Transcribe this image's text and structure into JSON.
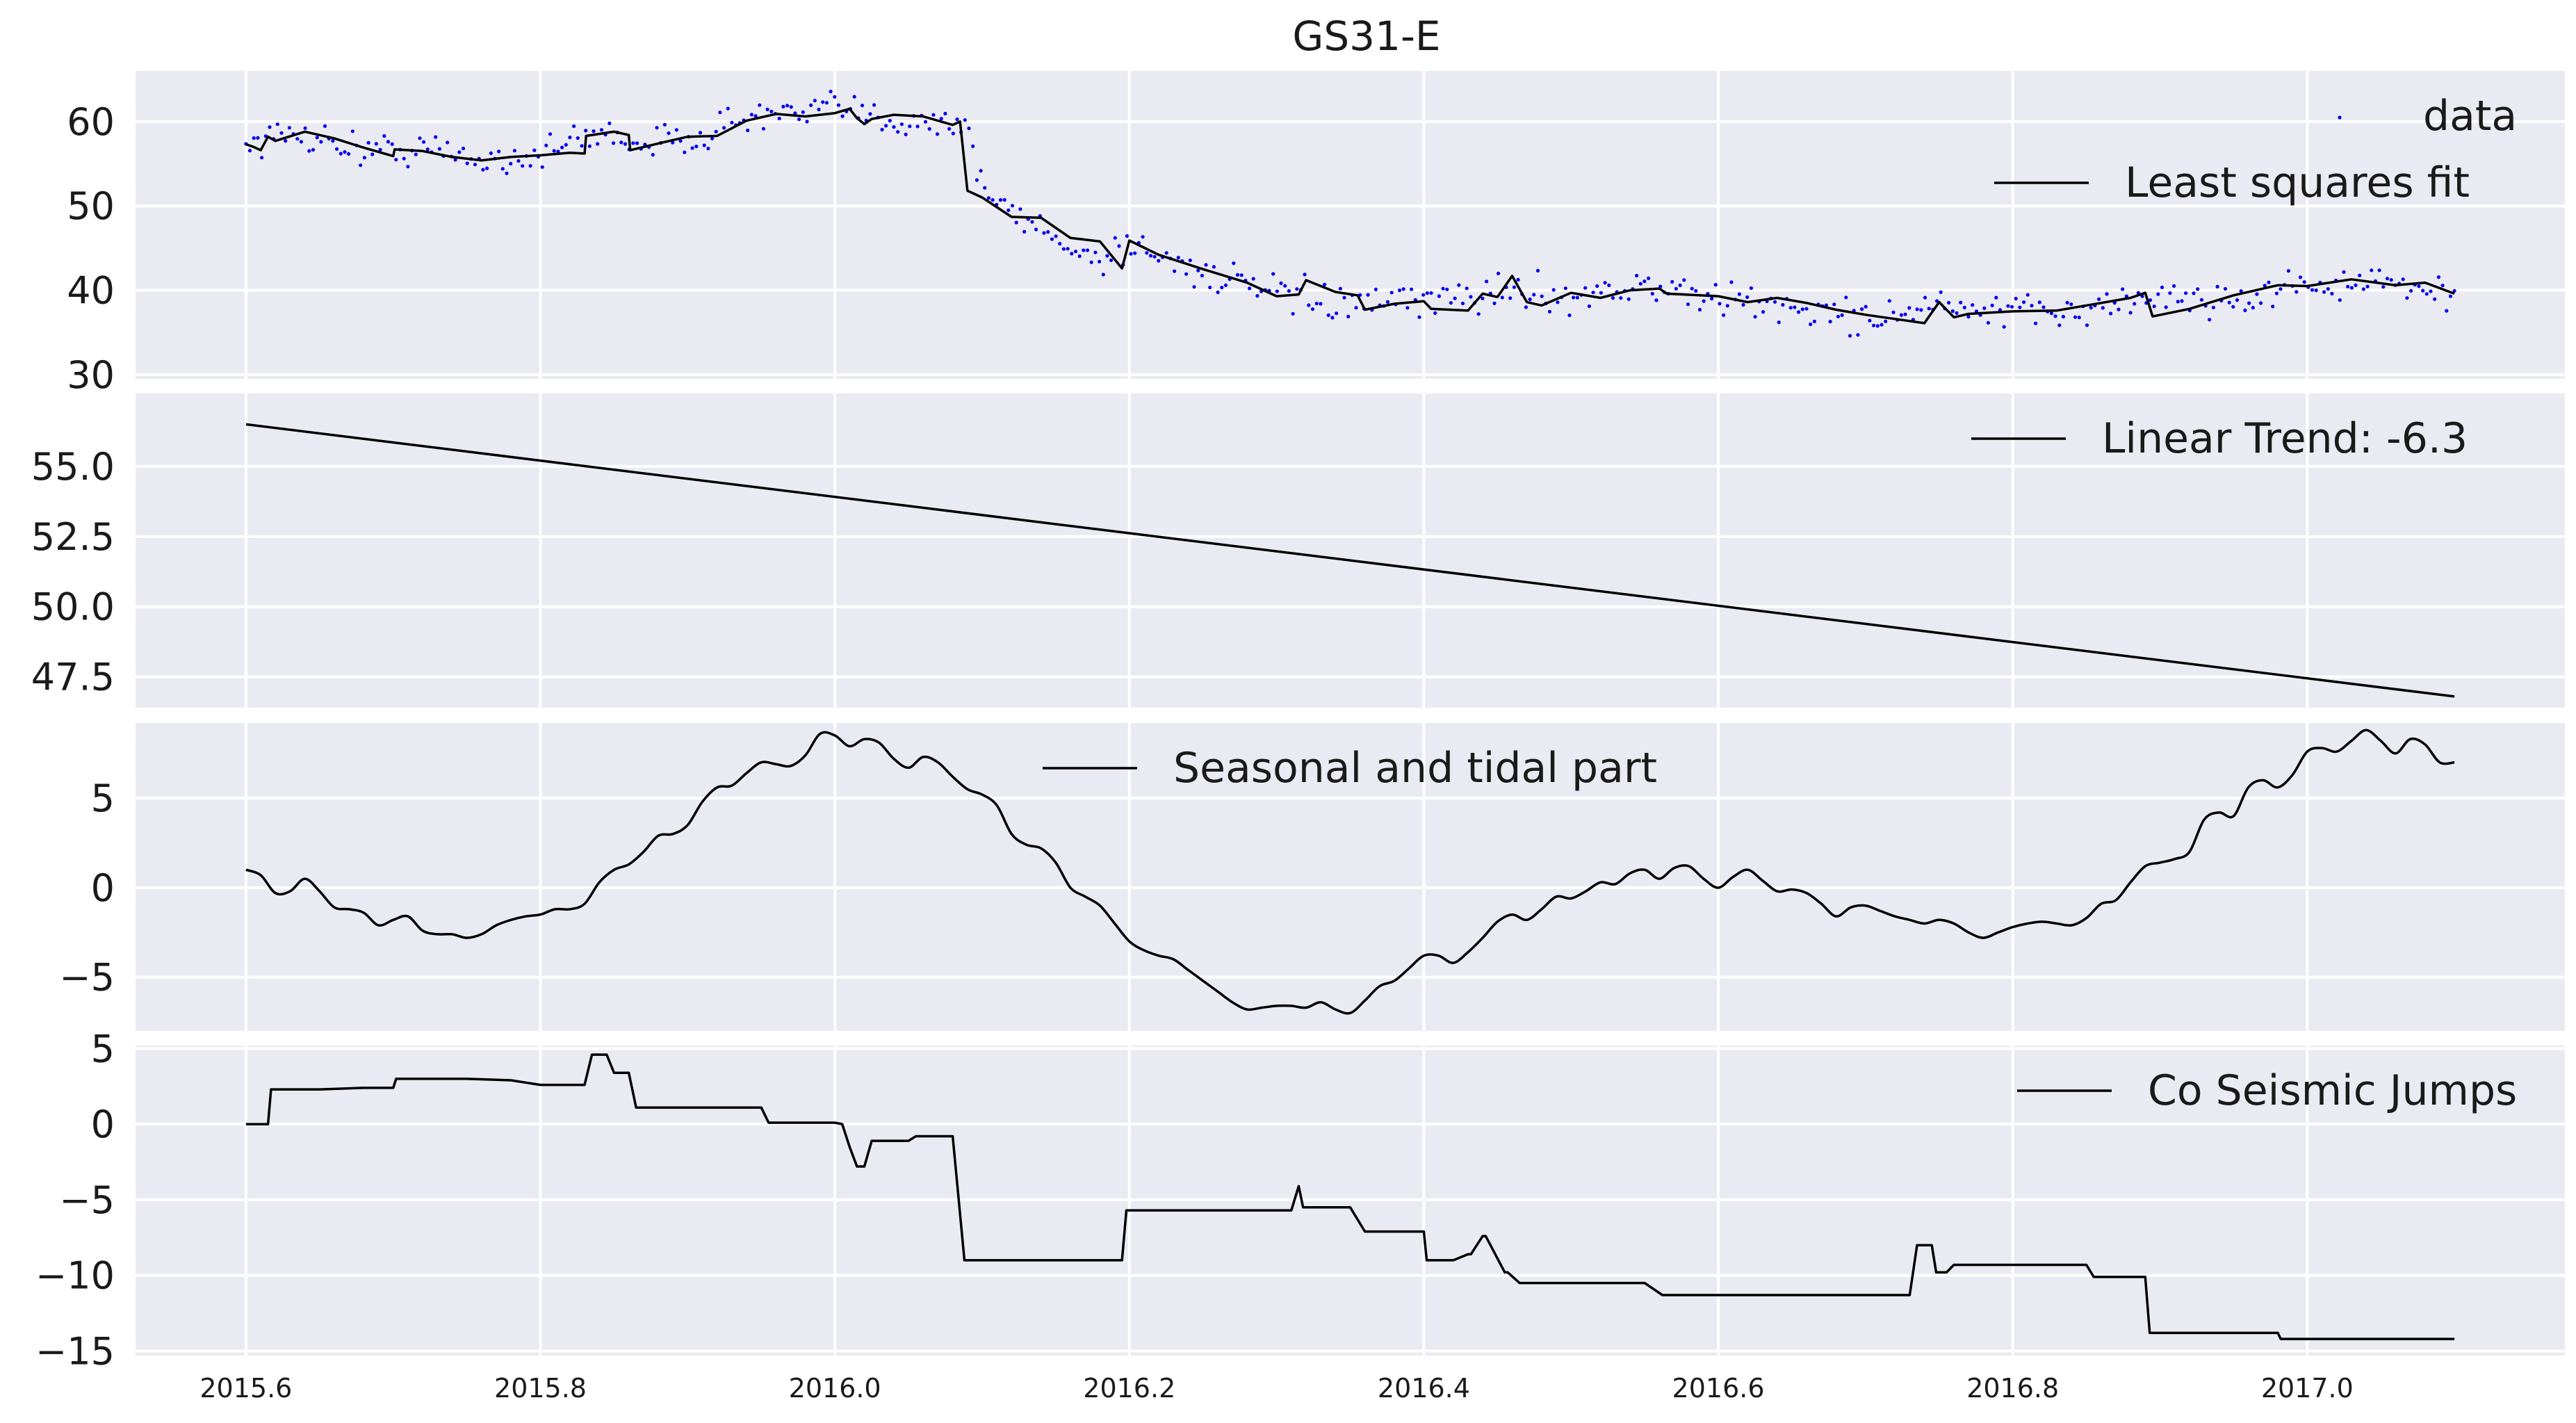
{
  "chart_data": {
    "type": "line",
    "title": "GS31-E",
    "x_ticks": [
      2015.6,
      2015.8,
      2016.0,
      2016.2,
      2016.4,
      2016.6,
      2016.8,
      2017.0
    ],
    "x_tick_labels": [
      "2015.6",
      "2015.8",
      "2016.0",
      "2016.2",
      "2016.4",
      "2016.6",
      "2016.8",
      "2017.0"
    ],
    "xlim": [
      2015.525,
      2017.175
    ],
    "grid": true,
    "panels": [
      {
        "ylim": [
          29.5,
          66
        ],
        "y_ticks": [
          30,
          40,
          50,
          60
        ],
        "y_tick_labels": [
          "30",
          "40",
          "50",
          "60"
        ],
        "legend_position": "top-right",
        "series": [
          {
            "name": "data",
            "style": "scatter",
            "color": "#0000ee",
            "x": [
              2015.6,
              2015.64,
              2015.68,
              2015.72,
              2015.76,
              2015.8,
              2015.84,
              2015.88,
              2015.92,
              2015.95,
              2015.98,
              2016.0,
              2016.03,
              2016.06,
              2016.09,
              2016.1,
              2016.12,
              2016.15,
              2016.18,
              2016.2,
              2016.25,
              2016.3,
              2016.35,
              2016.4,
              2016.45,
              2016.5,
              2016.55,
              2016.6,
              2016.65,
              2016.7,
              2016.74,
              2016.8,
              2016.85,
              2016.9,
              2016.95,
              2017.0,
              2017.05,
              2017.1
            ],
            "y": [
              57.5,
              58.6,
              56.5,
              56.8,
              55.4,
              56.1,
              58.7,
              57.2,
              59.1,
              60.9,
              60.6,
              61.8,
              60.2,
              60.3,
              59.6,
              51.8,
              49.2,
              46.2,
              43.5,
              45.5,
              42.1,
              39.5,
              38.2,
              38.6,
              39.9,
              39.4,
              40.5,
              38.9,
              38.0,
              36.6,
              38.0,
              37.2,
              37.8,
              39.3,
              38.8,
              40.8,
              40.6,
              39.6
            ],
            "scatter_around_fit": 2.0
          },
          {
            "name": "Least squares fit",
            "style": "line",
            "color": "#000000",
            "x": [
              2015.6,
              2015.605,
              2015.61,
              2015.615,
              2015.62,
              2015.64,
              2015.66,
              2015.68,
              2015.7,
              2015.701,
              2015.72,
              2015.74,
              2015.76,
              2015.78,
              2015.8,
              2015.82,
              2015.83,
              2015.831,
              2015.85,
              2015.86,
              2015.861,
              2015.88,
              2015.9,
              2015.92,
              2015.94,
              2015.96,
              2015.98,
              2016.0,
              2016.01,
              2016.015,
              2016.02,
              2016.025,
              2016.04,
              2016.06,
              2016.08,
              2016.085,
              2016.09,
              2016.1,
              2016.12,
              2016.14,
              2016.16,
              2016.18,
              2016.195,
              2016.2,
              2016.22,
              2016.25,
              2016.28,
              2016.3,
              2016.315,
              2016.32,
              2016.34,
              2016.355,
              2016.36,
              2016.38,
              2016.4,
              2016.405,
              2016.43,
              2016.44,
              2016.45,
              2016.46,
              2016.47,
              2016.48,
              2016.5,
              2016.52,
              2016.54,
              2016.56,
              2016.565,
              2016.6,
              2016.62,
              2016.64,
              2016.66,
              2016.68,
              2016.7,
              2016.72,
              2016.74,
              2016.742,
              2016.75,
              2016.76,
              2016.77,
              2016.8,
              2016.83,
              2016.86,
              2016.88,
              2016.89,
              2016.895,
              2016.92,
              2016.95,
              2016.98,
              2017.0,
              2017.03,
              2017.06,
              2017.08,
              2017.1
            ],
            "y": [
              57.3,
              57.0,
              56.6,
              58.2,
              57.7,
              58.8,
              58.0,
              56.9,
              55.9,
              56.7,
              56.5,
              55.8,
              55.4,
              55.8,
              56.0,
              56.3,
              56.2,
              58.3,
              58.8,
              58.4,
              56.6,
              57.4,
              58.2,
              58.3,
              60.1,
              60.9,
              60.6,
              61.0,
              61.5,
              60.4,
              59.7,
              60.3,
              60.8,
              60.6,
              59.6,
              60.0,
              51.8,
              51.0,
              48.7,
              48.6,
              46.2,
              45.8,
              42.6,
              45.9,
              44.2,
              42.5,
              40.9,
              39.3,
              39.5,
              41.2,
              39.8,
              39.4,
              37.7,
              38.4,
              38.7,
              37.8,
              37.6,
              39.6,
              39.2,
              41.7,
              38.6,
              38.2,
              39.7,
              39.1,
              40.0,
              40.2,
              39.6,
              39.3,
              38.6,
              39.1,
              38.5,
              37.7,
              37.1,
              36.6,
              36.1,
              36.6,
              38.6,
              36.8,
              37.2,
              37.5,
              37.6,
              38.5,
              39.1,
              39.7,
              36.9,
              37.8,
              39.4,
              40.6,
              40.5,
              41.3,
              40.6,
              40.9,
              39.6
            ]
          }
        ]
      },
      {
        "ylim": [
          46.4,
          57.6
        ],
        "y_ticks": [
          47.5,
          50.0,
          52.5,
          55.0
        ],
        "y_tick_labels": [
          "47.5",
          "50.0",
          "52.5",
          "55.0"
        ],
        "legend_position": "top-right",
        "series": [
          {
            "name": "Linear Trend: -6.3",
            "style": "line",
            "color": "#000000",
            "x": [
              2015.6,
              2017.1
            ],
            "y": [
              56.5,
              46.8
            ]
          }
        ]
      },
      {
        "ylim": [
          -8,
          9.2
        ],
        "y_ticks": [
          -5,
          0,
          5
        ],
        "y_tick_labels": [
          "−5",
          "0",
          "5"
        ],
        "legend_position": "top-center",
        "series": [
          {
            "name": "Seasonal and tidal part",
            "style": "line",
            "color": "#000000",
            "x": [
              2015.6,
              2015.61,
              2015.62,
              2015.63,
              2015.64,
              2015.65,
              2015.66,
              2015.67,
              2015.68,
              2015.69,
              2015.7,
              2015.71,
              2015.72,
              2015.73,
              2015.74,
              2015.75,
              2015.76,
              2015.77,
              2015.78,
              2015.79,
              2015.8,
              2015.81,
              2015.82,
              2015.83,
              2015.84,
              2015.85,
              2015.86,
              2015.87,
              2015.88,
              2015.89,
              2015.9,
              2015.91,
              2015.92,
              2015.93,
              2015.94,
              2015.95,
              2015.96,
              2015.97,
              2015.98,
              2015.99,
              2016.0,
              2016.01,
              2016.02,
              2016.03,
              2016.04,
              2016.05,
              2016.06,
              2016.07,
              2016.08,
              2016.09,
              2016.1,
              2016.11,
              2016.12,
              2016.13,
              2016.14,
              2016.15,
              2016.16,
              2016.17,
              2016.18,
              2016.19,
              2016.2,
              2016.21,
              2016.22,
              2016.23,
              2016.24,
              2016.25,
              2016.26,
              2016.27,
              2016.28,
              2016.29,
              2016.3,
              2016.31,
              2016.32,
              2016.33,
              2016.34,
              2016.35,
              2016.36,
              2016.37,
              2016.38,
              2016.39,
              2016.4,
              2016.41,
              2016.42,
              2016.43,
              2016.44,
              2016.45,
              2016.46,
              2016.47,
              2016.48,
              2016.49,
              2016.5,
              2016.51,
              2016.52,
              2016.53,
              2016.54,
              2016.55,
              2016.56,
              2016.57,
              2016.58,
              2016.59,
              2016.6,
              2016.61,
              2016.62,
              2016.63,
              2016.64,
              2016.65,
              2016.66,
              2016.67,
              2016.68,
              2016.69,
              2016.7,
              2016.71,
              2016.72,
              2016.73,
              2016.74,
              2016.75,
              2016.76,
              2016.77,
              2016.78,
              2016.79,
              2016.8,
              2016.81,
              2016.82,
              2016.83,
              2016.84,
              2016.85,
              2016.86,
              2016.87,
              2016.88,
              2016.89,
              2016.9,
              2016.91,
              2016.92,
              2016.93,
              2016.94,
              2016.95,
              2016.96,
              2016.97,
              2016.98,
              2016.99,
              2017.0,
              2017.01,
              2017.02,
              2017.03,
              2017.04,
              2017.05,
              2017.06,
              2017.07,
              2017.08,
              2017.09,
              2017.1
            ],
            "y": [
              1.0,
              0.7,
              -0.3,
              -0.2,
              0.5,
              -0.2,
              -1.1,
              -1.2,
              -1.4,
              -2.1,
              -1.8,
              -1.6,
              -2.4,
              -2.6,
              -2.6,
              -2.8,
              -2.6,
              -2.1,
              -1.8,
              -1.6,
              -1.5,
              -1.2,
              -1.2,
              -0.9,
              0.3,
              1.0,
              1.3,
              2.0,
              2.9,
              3.0,
              3.5,
              4.8,
              5.6,
              5.7,
              6.4,
              7.0,
              6.9,
              6.8,
              7.4,
              8.6,
              8.5,
              7.9,
              8.3,
              8.1,
              7.2,
              6.7,
              7.3,
              7.0,
              6.2,
              5.5,
              5.2,
              4.6,
              3.0,
              2.4,
              2.2,
              1.4,
              0.0,
              -0.5,
              -1.0,
              -2.0,
              -3.0,
              -3.5,
              -3.8,
              -4.0,
              -4.6,
              -5.2,
              -5.8,
              -6.4,
              -6.8,
              -6.7,
              -6.6,
              -6.6,
              -6.7,
              -6.4,
              -6.8,
              -7.0,
              -6.3,
              -5.5,
              -5.2,
              -4.5,
              -3.8,
              -3.8,
              -4.2,
              -3.6,
              -2.8,
              -1.9,
              -1.5,
              -1.8,
              -1.2,
              -0.5,
              -0.6,
              -0.2,
              0.3,
              0.2,
              0.8,
              1.0,
              0.5,
              1.1,
              1.2,
              0.5,
              0.0,
              0.6,
              1.0,
              0.4,
              -0.2,
              -0.1,
              -0.3,
              -0.9,
              -1.6,
              -1.1,
              -1.0,
              -1.3,
              -1.6,
              -1.8,
              -2.0,
              -1.8,
              -2.0,
              -2.5,
              -2.8,
              -2.5,
              -2.2,
              -2.0,
              -1.9,
              -2.0,
              -2.1,
              -1.7,
              -0.9,
              -0.7,
              0.3,
              1.2,
              1.4,
              1.6,
              2.0,
              3.8,
              4.2,
              4.0,
              5.6,
              6.0,
              5.6,
              6.3,
              7.6,
              7.8,
              7.6,
              8.2,
              8.8,
              8.2,
              7.5,
              8.3,
              8.0,
              7.0,
              7.0
            ],
            "smooth": true
          }
        ]
      },
      {
        "ylim": [
          -15.3,
          5.2
        ],
        "y_ticks": [
          -15,
          -10,
          -5,
          0,
          5
        ],
        "y_tick_labels": [
          "−15",
          "−10",
          "−5",
          "0",
          "5"
        ],
        "legend_position": "top-right",
        "series": [
          {
            "name": "Co Seismic Jumps",
            "style": "step",
            "color": "#000000",
            "x": [
              2015.6,
              2015.615,
              2015.617,
              2015.65,
              2015.68,
              2015.7,
              2015.702,
              2015.75,
              2015.78,
              2015.8,
              2015.83,
              2015.835,
              2015.845,
              2015.85,
              2015.86,
              2015.865,
              2015.9,
              2015.95,
              2015.955,
              2016.0,
              2016.005,
              2016.01,
              2016.015,
              2016.02,
              2016.025,
              2016.03,
              2016.05,
              2016.055,
              2016.07,
              2016.08,
              2016.088,
              2016.09,
              2016.15,
              2016.195,
              2016.198,
              2016.25,
              2016.31,
              2016.315,
              2016.318,
              2016.32,
              2016.35,
              2016.36,
              2016.362,
              2016.4,
              2016.402,
              2016.42,
              2016.43,
              2016.432,
              2016.44,
              2016.442,
              2016.455,
              2016.457,
              2016.465,
              2016.467,
              2016.5,
              2016.55,
              2016.562,
              2016.6,
              2016.7,
              2016.73,
              2016.735,
              2016.745,
              2016.748,
              2016.755,
              2016.76,
              2016.8,
              2016.85,
              2016.855,
              2016.88,
              2016.89,
              2016.893,
              2016.95,
              2016.98,
              2016.982,
              2017.05,
              2017.1
            ],
            "y": [
              0.0,
              0.0,
              2.3,
              2.3,
              2.4,
              2.4,
              3.0,
              3.0,
              2.9,
              2.6,
              2.6,
              4.6,
              4.6,
              3.4,
              3.4,
              1.1,
              1.1,
              1.1,
              0.1,
              0.1,
              0.0,
              -1.5,
              -2.8,
              -2.8,
              -1.1,
              -1.1,
              -1.1,
              -0.8,
              -0.8,
              -0.8,
              -9.0,
              -9.0,
              -9.0,
              -9.0,
              -5.7,
              -5.7,
              -5.7,
              -4.1,
              -5.5,
              -5.5,
              -5.5,
              -7.1,
              -7.1,
              -7.1,
              -9.0,
              -9.0,
              -8.6,
              -8.6,
              -7.4,
              -7.4,
              -9.8,
              -9.8,
              -10.5,
              -10.5,
              -10.5,
              -10.5,
              -11.3,
              -11.3,
              -11.3,
              -11.3,
              -8.0,
              -8.0,
              -9.8,
              -9.8,
              -9.3,
              -9.3,
              -9.3,
              -10.1,
              -10.1,
              -10.1,
              -13.8,
              -13.8,
              -13.8,
              -14.2,
              -14.2,
              -14.2
            ]
          }
        ]
      }
    ]
  }
}
